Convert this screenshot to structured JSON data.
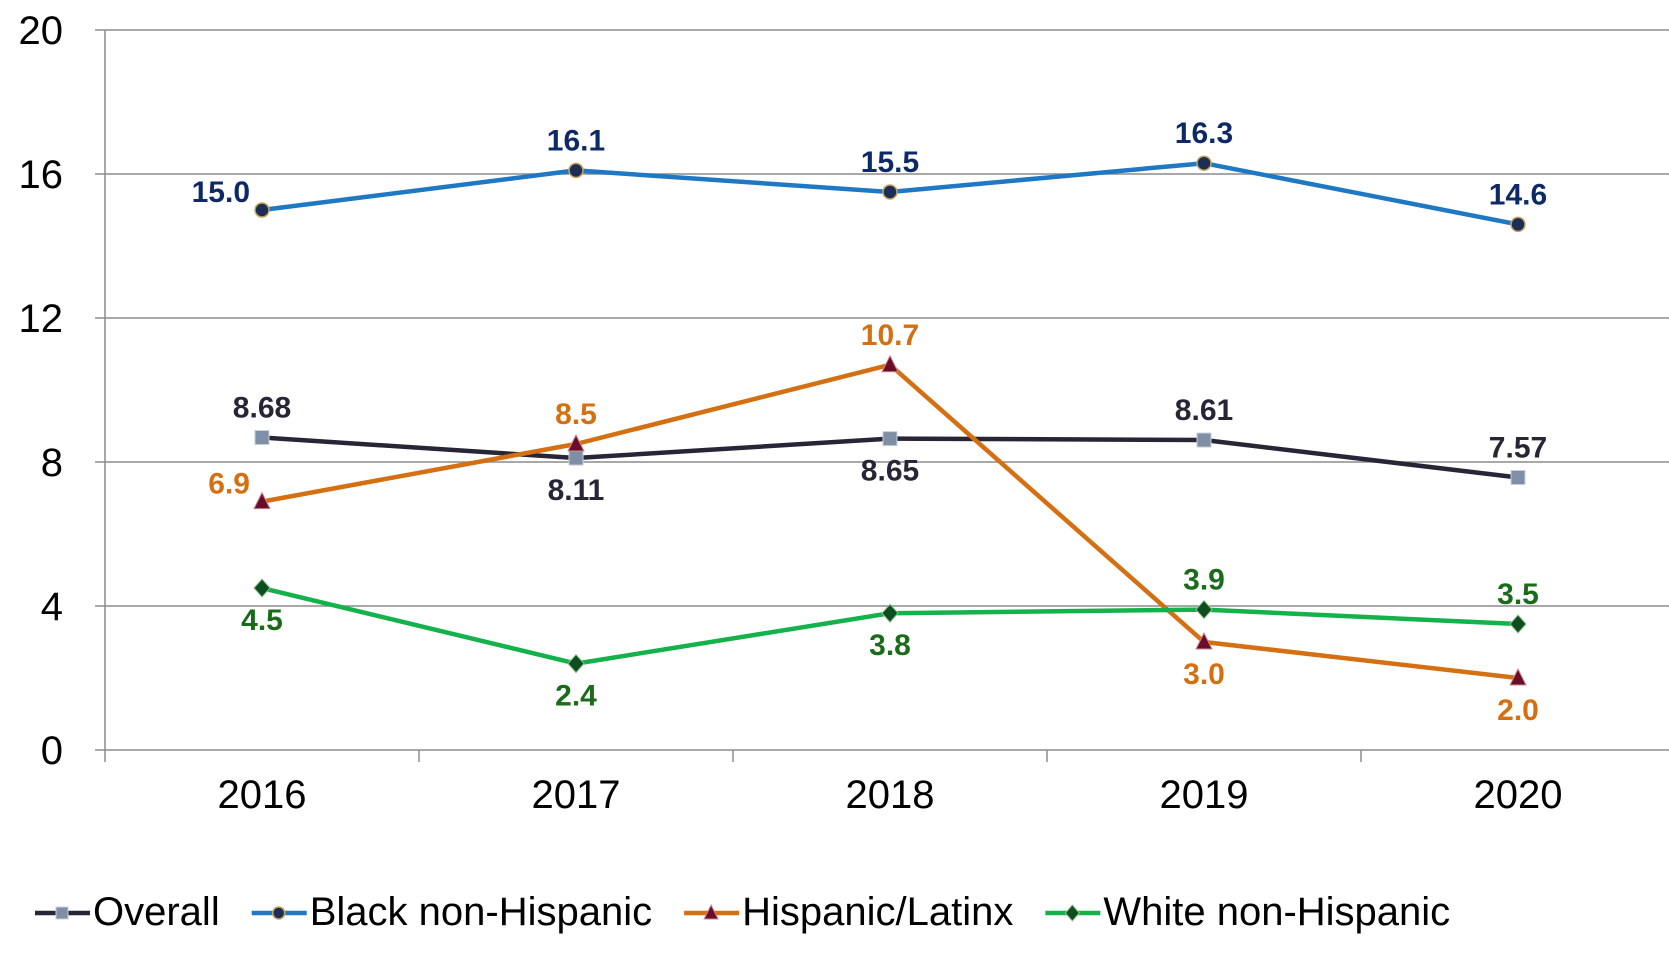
{
  "chart_data": {
    "type": "line",
    "categories": [
      "2016",
      "2017",
      "2018",
      "2019",
      "2020"
    ],
    "ylim": [
      0,
      20
    ],
    "yticks": [
      0,
      4,
      8,
      12,
      16,
      20
    ],
    "grid": "horizontal",
    "legend_position": "bottom",
    "series": [
      {
        "name": "Overall",
        "values": [
          8.68,
          8.11,
          8.65,
          8.61,
          7.57
        ],
        "labels": [
          "8.68",
          "8.11",
          "8.65",
          "8.61",
          "7.57"
        ],
        "label_pos": [
          "above",
          "below",
          "below",
          "above",
          "above"
        ],
        "color": "#262636",
        "marker": "square",
        "marker_color": "#7f8fa6",
        "label_color": "#262636"
      },
      {
        "name": "Black non-Hispanic",
        "values": [
          15.0,
          16.1,
          15.5,
          16.3,
          14.6
        ],
        "labels": [
          "15.0",
          "16.1",
          "15.5",
          "16.3",
          "14.6"
        ],
        "label_pos": [
          "left",
          "above",
          "above",
          "above",
          "above"
        ],
        "color": "#1f78c4",
        "marker": "circle",
        "marker_color": "#1c2e57",
        "label_color": "#0d2a66"
      },
      {
        "name": "Hispanic/Latinx",
        "values": [
          6.9,
          8.5,
          10.7,
          3.0,
          2.0
        ],
        "labels": [
          "6.9",
          "8.5",
          "10.7",
          "3.0",
          "2.0"
        ],
        "label_pos": [
          "left",
          "above",
          "above",
          "below",
          "below"
        ],
        "color": "#d46f12",
        "marker": "triangle",
        "marker_color": "#6b0d2a",
        "label_color": "#d46f12"
      },
      {
        "name": "White non-Hispanic",
        "values": [
          4.5,
          2.4,
          3.8,
          3.9,
          3.5
        ],
        "labels": [
          "4.5",
          "2.4",
          "3.8",
          "3.9",
          "3.5"
        ],
        "label_pos": [
          "below",
          "below",
          "below",
          "above",
          "above"
        ],
        "color": "#14b24a",
        "marker": "diamond",
        "marker_color": "#0d4d1f",
        "label_color": "#1a6b1a"
      }
    ]
  }
}
